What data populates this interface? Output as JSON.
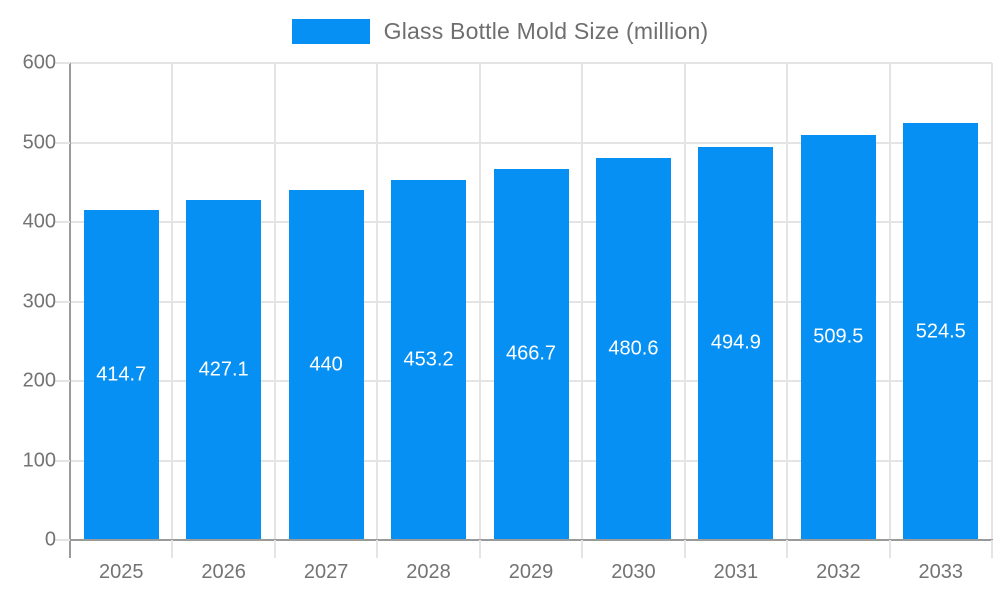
{
  "chart_data": {
    "type": "bar",
    "title": "Glass Bottle Mold Size (million)",
    "legend": {
      "label": "Glass Bottle Mold Size (million)",
      "position": "top"
    },
    "categories": [
      "2025",
      "2026",
      "2027",
      "2028",
      "2029",
      "2030",
      "2031",
      "2032",
      "2033"
    ],
    "series": [
      {
        "name": "Glass Bottle Mold Size (million)",
        "values": [
          414.7,
          427.1,
          440,
          453.2,
          466.7,
          480.6,
          494.9,
          509.5,
          524.5
        ],
        "labels": [
          "414.7",
          "427.1",
          "440",
          "453.2",
          "466.7",
          "480.6",
          "494.9",
          "509.5",
          "524.5"
        ]
      }
    ],
    "ylim": [
      0,
      600
    ],
    "yticks": [
      0,
      100,
      200,
      300,
      400,
      500,
      600
    ],
    "grid": true,
    "bar_color": "#0690F3",
    "bar_label_color": "#ffffff",
    "axis_text_color": "#737373"
  }
}
